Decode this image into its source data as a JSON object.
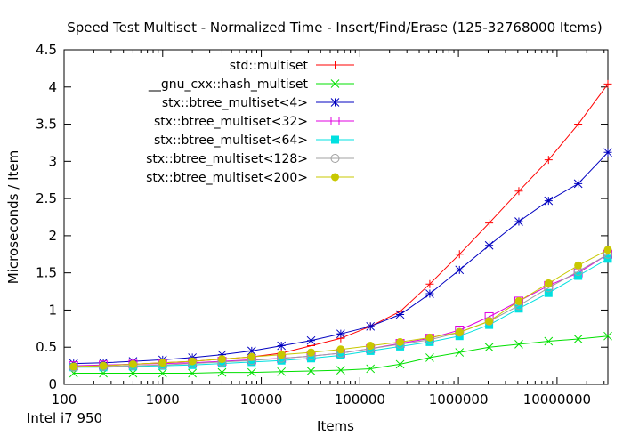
{
  "cpu_label": "Intel i7 950",
  "chart_data": {
    "type": "line",
    "title": "Speed Test Multiset - Normalized Time - Insert/Find/Erase (125-32768000 Items)",
    "xlabel": "Items",
    "ylabel": "Microseconds / Item",
    "xscale": "log",
    "xlim": [
      100,
      32768000
    ],
    "ylim": [
      0,
      4.5
    ],
    "x_ticks": [
      100,
      1000,
      10000,
      100000,
      1000000,
      10000000
    ],
    "x_tick_labels": [
      "100",
      "1000",
      "10000",
      "100000",
      "1000000",
      "10000000"
    ],
    "y_ticks": [
      0,
      0.5,
      1,
      1.5,
      2,
      2.5,
      3,
      3.5,
      4,
      4.5
    ],
    "y_tick_labels": [
      "0",
      "0.5",
      "1",
      "1.5",
      "2",
      "2.5",
      "3",
      "3.5",
      "4",
      "4.5"
    ],
    "legend_position": "top-left",
    "x": [
      125,
      250,
      500,
      1000,
      2000,
      4000,
      8000,
      16000,
      32000,
      64000,
      128000,
      256000,
      512000,
      1024000,
      2048000,
      4096000,
      8192000,
      16384000,
      32768000
    ],
    "series": [
      {
        "name": "std::multiset",
        "color": "#ff0000",
        "marker": "plus",
        "values": [
          0.23,
          0.25,
          0.27,
          0.29,
          0.31,
          0.34,
          0.37,
          0.42,
          0.52,
          0.62,
          0.78,
          0.98,
          1.35,
          1.75,
          2.17,
          2.6,
          3.02,
          3.5,
          4.04
        ]
      },
      {
        "name": "__gnu_cxx::hash_multiset",
        "color": "#00e000",
        "marker": "cross",
        "values": [
          0.15,
          0.15,
          0.15,
          0.15,
          0.15,
          0.16,
          0.16,
          0.17,
          0.18,
          0.19,
          0.21,
          0.27,
          0.36,
          0.43,
          0.5,
          0.54,
          0.58,
          0.61,
          0.65
        ]
      },
      {
        "name": "stx::btree_multiset<4>",
        "color": "#0000c0",
        "marker": "star",
        "values": [
          0.28,
          0.29,
          0.31,
          0.33,
          0.36,
          0.4,
          0.45,
          0.52,
          0.59,
          0.68,
          0.78,
          0.94,
          1.22,
          1.54,
          1.87,
          2.19,
          2.47,
          2.7,
          3.12
        ]
      },
      {
        "name": "stx::btree_multiset<32>",
        "color": "#e000e0",
        "marker": "open-square",
        "values": [
          0.25,
          0.26,
          0.27,
          0.28,
          0.29,
          0.31,
          0.33,
          0.35,
          0.38,
          0.42,
          0.48,
          0.55,
          0.62,
          0.73,
          0.91,
          1.12,
          1.33,
          1.5,
          1.75
        ]
      },
      {
        "name": "stx::btree_multiset<64>",
        "color": "#00e0e0",
        "marker": "filled-square",
        "values": [
          0.23,
          0.23,
          0.24,
          0.25,
          0.26,
          0.28,
          0.3,
          0.32,
          0.35,
          0.39,
          0.45,
          0.51,
          0.57,
          0.65,
          0.8,
          1.02,
          1.23,
          1.46,
          1.69
        ]
      },
      {
        "name": "stx::btree_multiset<128>",
        "color": "#a0a0a0",
        "marker": "open-circle",
        "values": [
          0.23,
          0.24,
          0.25,
          0.26,
          0.28,
          0.3,
          0.32,
          0.35,
          0.38,
          0.42,
          0.48,
          0.54,
          0.6,
          0.7,
          0.85,
          1.06,
          1.3,
          1.52,
          1.75
        ]
      },
      {
        "name": "stx::btree_multiset<200>",
        "color": "#c8c800",
        "marker": "filled-circle",
        "values": [
          0.24,
          0.25,
          0.27,
          0.29,
          0.31,
          0.34,
          0.37,
          0.4,
          0.43,
          0.47,
          0.52,
          0.57,
          0.63,
          0.7,
          0.85,
          1.12,
          1.36,
          1.6,
          1.81
        ]
      }
    ]
  }
}
